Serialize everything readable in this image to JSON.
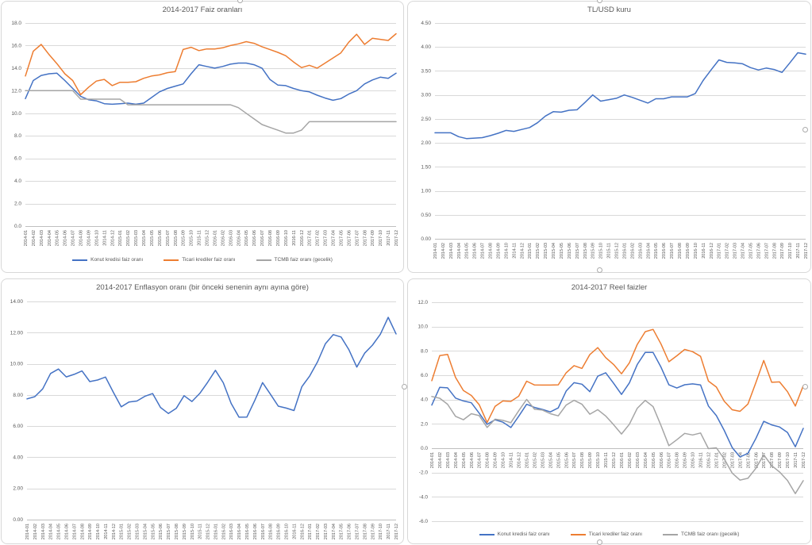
{
  "page": {
    "background": "#ffffff"
  },
  "palette": {
    "blue": "#4472C4",
    "orange": "#ED7D31",
    "gray": "#A5A5A5",
    "gridline": "#D9D9D9",
    "axis_line": "#BFBFBF",
    "text": "#595959"
  },
  "chart_data": {
    "categories": [
      "2014-01",
      "2014-02",
      "2014-03",
      "2014-04",
      "2014-05",
      "2014-06",
      "2014-07",
      "2014-08",
      "2014-09",
      "2014-10",
      "2014-11",
      "2014-12",
      "2015-01",
      "2015-02",
      "2015-03",
      "2015-04",
      "2015-05",
      "2015-06",
      "2015-07",
      "2015-08",
      "2015-09",
      "2015-10",
      "2015-11",
      "2015-12",
      "2016-01",
      "2016-02",
      "2016-03",
      "2016-04",
      "2016-05",
      "2016-06",
      "2016-07",
      "2016-08",
      "2016-09",
      "2016-10",
      "2016-11",
      "2016-12",
      "2017-01",
      "2017-02",
      "2017-03",
      "2017-04",
      "2017-05",
      "2017-06",
      "2017-07",
      "2017-08",
      "2017-09",
      "2017-10",
      "2017-11",
      "2017-12"
    ],
    "charts": [
      {
        "id": "faiz-oranlari",
        "type": "line",
        "title": "2014-2017 Faiz oranları",
        "ylim": [
          0,
          18
        ],
        "y_step": 2,
        "y_decimals": 1,
        "grid": true,
        "legend": true,
        "legend_position": "bottom",
        "x_labels_at": "bottom",
        "series": [
          {
            "name": "Konut kredisi faiz oranı",
            "color": "#4472C4",
            "values": [
              11.3,
              12.9,
              13.35,
              13.5,
              13.55,
              12.9,
              12.2,
              11.5,
              11.2,
              11.1,
              10.85,
              10.8,
              10.85,
              10.9,
              10.8,
              10.9,
              11.4,
              11.9,
              12.2,
              12.4,
              12.6,
              13.5,
              14.3,
              14.15,
              14.0,
              14.15,
              14.35,
              14.45,
              14.45,
              14.3,
              14.0,
              13.0,
              12.5,
              12.45,
              12.2,
              12.0,
              11.9,
              11.6,
              11.35,
              11.15,
              11.3,
              11.7,
              12.0,
              12.6,
              12.95,
              13.2,
              13.1,
              13.55
            ]
          },
          {
            "name": "Ticari krediler faiz oranı",
            "color": "#ED7D31",
            "values": [
              13.3,
              15.5,
              16.1,
              15.2,
              14.4,
              13.5,
              12.9,
              11.65,
              12.3,
              12.85,
              13.0,
              12.45,
              12.75,
              12.75,
              12.8,
              13.1,
              13.3,
              13.4,
              13.6,
              13.7,
              15.65,
              15.85,
              15.55,
              15.7,
              15.7,
              15.8,
              16.0,
              16.15,
              16.35,
              16.2,
              15.9,
              15.65,
              15.4,
              15.1,
              14.55,
              14.05,
              14.25,
              14.0,
              14.45,
              14.9,
              15.35,
              16.3,
              17.0,
              16.1,
              16.65,
              16.55,
              16.45,
              17.05
            ]
          },
          {
            "name": "TCMB faiz oranı (gecelik)",
            "color": "#A5A5A5",
            "values": [
              12.0,
              12.0,
              12.0,
              12.0,
              12.0,
              12.0,
              12.0,
              11.25,
              11.25,
              11.25,
              11.25,
              11.25,
              11.25,
              10.75,
              10.75,
              10.75,
              10.75,
              10.75,
              10.75,
              10.75,
              10.75,
              10.75,
              10.75,
              10.75,
              10.75,
              10.75,
              10.75,
              10.5,
              10.0,
              9.5,
              9.0,
              8.75,
              8.5,
              8.25,
              8.25,
              8.5,
              9.25,
              9.25,
              9.25,
              9.25,
              9.25,
              9.25,
              9.25,
              9.25,
              9.25,
              9.25,
              9.25,
              9.25
            ]
          }
        ]
      },
      {
        "id": "tl-usd-kuru",
        "type": "line",
        "title": "TL/USD kuru",
        "ylim": [
          0,
          4.5
        ],
        "y_step": 0.5,
        "y_decimals": 2,
        "grid": true,
        "legend": false,
        "x_labels_at": "bottom",
        "series": [
          {
            "name": "TL/USD kuru",
            "color": "#4472C4",
            "values": [
              2.21,
              2.21,
              2.21,
              2.13,
              2.09,
              2.1,
              2.11,
              2.15,
              2.2,
              2.26,
              2.24,
              2.28,
              2.32,
              2.42,
              2.56,
              2.65,
              2.64,
              2.68,
              2.69,
              2.84,
              3.0,
              2.87,
              2.9,
              2.93,
              3.0,
              2.95,
              2.89,
              2.83,
              2.92,
              2.92,
              2.96,
              2.96,
              2.96,
              3.03,
              3.3,
              3.52,
              3.73,
              3.68,
              3.67,
              3.65,
              3.57,
              3.52,
              3.56,
              3.53,
              3.47,
              3.67,
              3.88,
              3.85
            ]
          }
        ]
      },
      {
        "id": "enflasyon-orani",
        "type": "line",
        "title": "2014-2017 Enflasyon oranı (bir önceki senenin aynı ayına göre)",
        "ylim": [
          0,
          14
        ],
        "y_step": 2,
        "y_decimals": 2,
        "grid": true,
        "legend": false,
        "x_labels_at": "bottom",
        "series": [
          {
            "name": "Enflasyon oranı",
            "color": "#4472C4",
            "values": [
              7.75,
              7.89,
              8.39,
              9.38,
              9.66,
              9.16,
              9.32,
              9.54,
              8.86,
              8.96,
              9.15,
              8.17,
              7.24,
              7.55,
              7.61,
              7.91,
              8.09,
              7.2,
              6.81,
              7.14,
              7.95,
              7.58,
              8.1,
              8.81,
              9.58,
              8.78,
              7.46,
              6.57,
              6.58,
              7.64,
              8.79,
              8.05,
              7.28,
              7.16,
              7.0,
              8.53,
              9.22,
              10.13,
              11.29,
              11.87,
              11.72,
              10.9,
              9.79,
              10.68,
              11.2,
              11.9,
              12.98,
              11.92
            ]
          }
        ]
      },
      {
        "id": "reel-faizler",
        "type": "line",
        "title": "2014-2017 Reel faizler",
        "ylim": [
          -6,
          12
        ],
        "y_step": 2,
        "y_decimals": 1,
        "grid": true,
        "legend": true,
        "legend_position": "bottom",
        "x_labels_at": "zero",
        "series": [
          {
            "name": "Konut kredisi faiz oranı",
            "color": "#4472C4",
            "values": [
              3.55,
              5.01,
              4.96,
              4.12,
              3.89,
              3.74,
              2.88,
              1.96,
              2.34,
              2.14,
              1.7,
              2.63,
              3.61,
              3.35,
              3.19,
              2.99,
              3.31,
              4.7,
              5.39,
              5.26,
              4.65,
              5.92,
              6.2,
              5.34,
              4.42,
              5.37,
              6.89,
              7.88,
              7.87,
              6.66,
              5.21,
              4.95,
              5.22,
              5.29,
              5.2,
              3.47,
              2.68,
              1.47,
              0.06,
              -0.72,
              -0.42,
              0.8,
              2.21,
              1.92,
              1.75,
              1.3,
              0.12,
              1.63
            ]
          },
          {
            "name": "Ticari krediler faiz oranı",
            "color": "#ED7D31",
            "values": [
              5.55,
              7.61,
              7.71,
              5.82,
              4.74,
              4.34,
              3.58,
              2.11,
              3.44,
              3.89,
              3.85,
              4.28,
              5.51,
              5.2,
              5.19,
              5.19,
              5.21,
              6.2,
              6.79,
              6.56,
              7.7,
              8.27,
              7.45,
              6.89,
              6.12,
              7.02,
              8.54,
              9.58,
              9.77,
              8.56,
              7.11,
              7.6,
              8.12,
              7.94,
              7.55,
              5.52,
              5.03,
              3.87,
              3.16,
              3.03,
              3.63,
              5.4,
              7.21,
              5.42,
              5.45,
              4.65,
              3.47,
              5.13
            ]
          },
          {
            "name": "TCMB faiz oranı (gecelik)",
            "color": "#A5A5A5",
            "values": [
              4.25,
              4.11,
              3.61,
              2.62,
              2.34,
              2.84,
              2.68,
              1.71,
              2.39,
              2.29,
              2.1,
              3.08,
              4.01,
              3.2,
              3.14,
              2.84,
              2.66,
              3.55,
              3.94,
              3.61,
              2.8,
              3.17,
              2.65,
              1.94,
              1.17,
              1.97,
              3.29,
              3.93,
              3.42,
              1.86,
              0.21,
              0.7,
              1.22,
              1.09,
              1.25,
              -0.03,
              0.03,
              -0.88,
              -2.04,
              -2.62,
              -2.47,
              -1.65,
              -0.54,
              -1.43,
              -1.95,
              -2.65,
              -3.73,
              -2.67
            ]
          }
        ]
      }
    ]
  }
}
